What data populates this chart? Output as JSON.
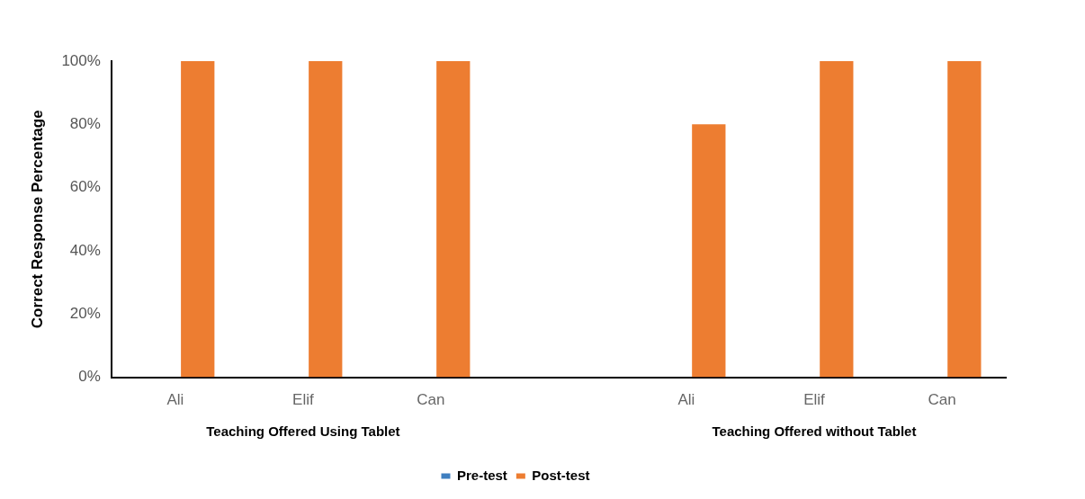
{
  "chart_data": {
    "type": "bar",
    "ylabel": "Correct Response Percentage",
    "categories": [
      "Ali",
      "Elif",
      "Can",
      null,
      "Ali",
      "Elif",
      "Can"
    ],
    "series": [
      {
        "name": "Pre-test",
        "color": "#3f7fc0",
        "values": [
          0,
          0,
          0,
          null,
          0,
          0,
          0
        ]
      },
      {
        "name": "Post-test",
        "color": "#ed7d31",
        "values": [
          100,
          100,
          100,
          null,
          80,
          100,
          100
        ]
      }
    ],
    "ylim": [
      0,
      100
    ],
    "yticks": [
      {
        "value": 0,
        "label": "0%"
      },
      {
        "value": 20,
        "label": "20%"
      },
      {
        "value": 40,
        "label": "40%"
      },
      {
        "value": 60,
        "label": "60%"
      },
      {
        "value": 80,
        "label": "80%"
      },
      {
        "value": 100,
        "label": "100%"
      }
    ],
    "annotations": [
      "Teaching Offered Using Tablet",
      "Teaching Offered without Tablet"
    ],
    "grid": false,
    "legend": "bottom"
  }
}
